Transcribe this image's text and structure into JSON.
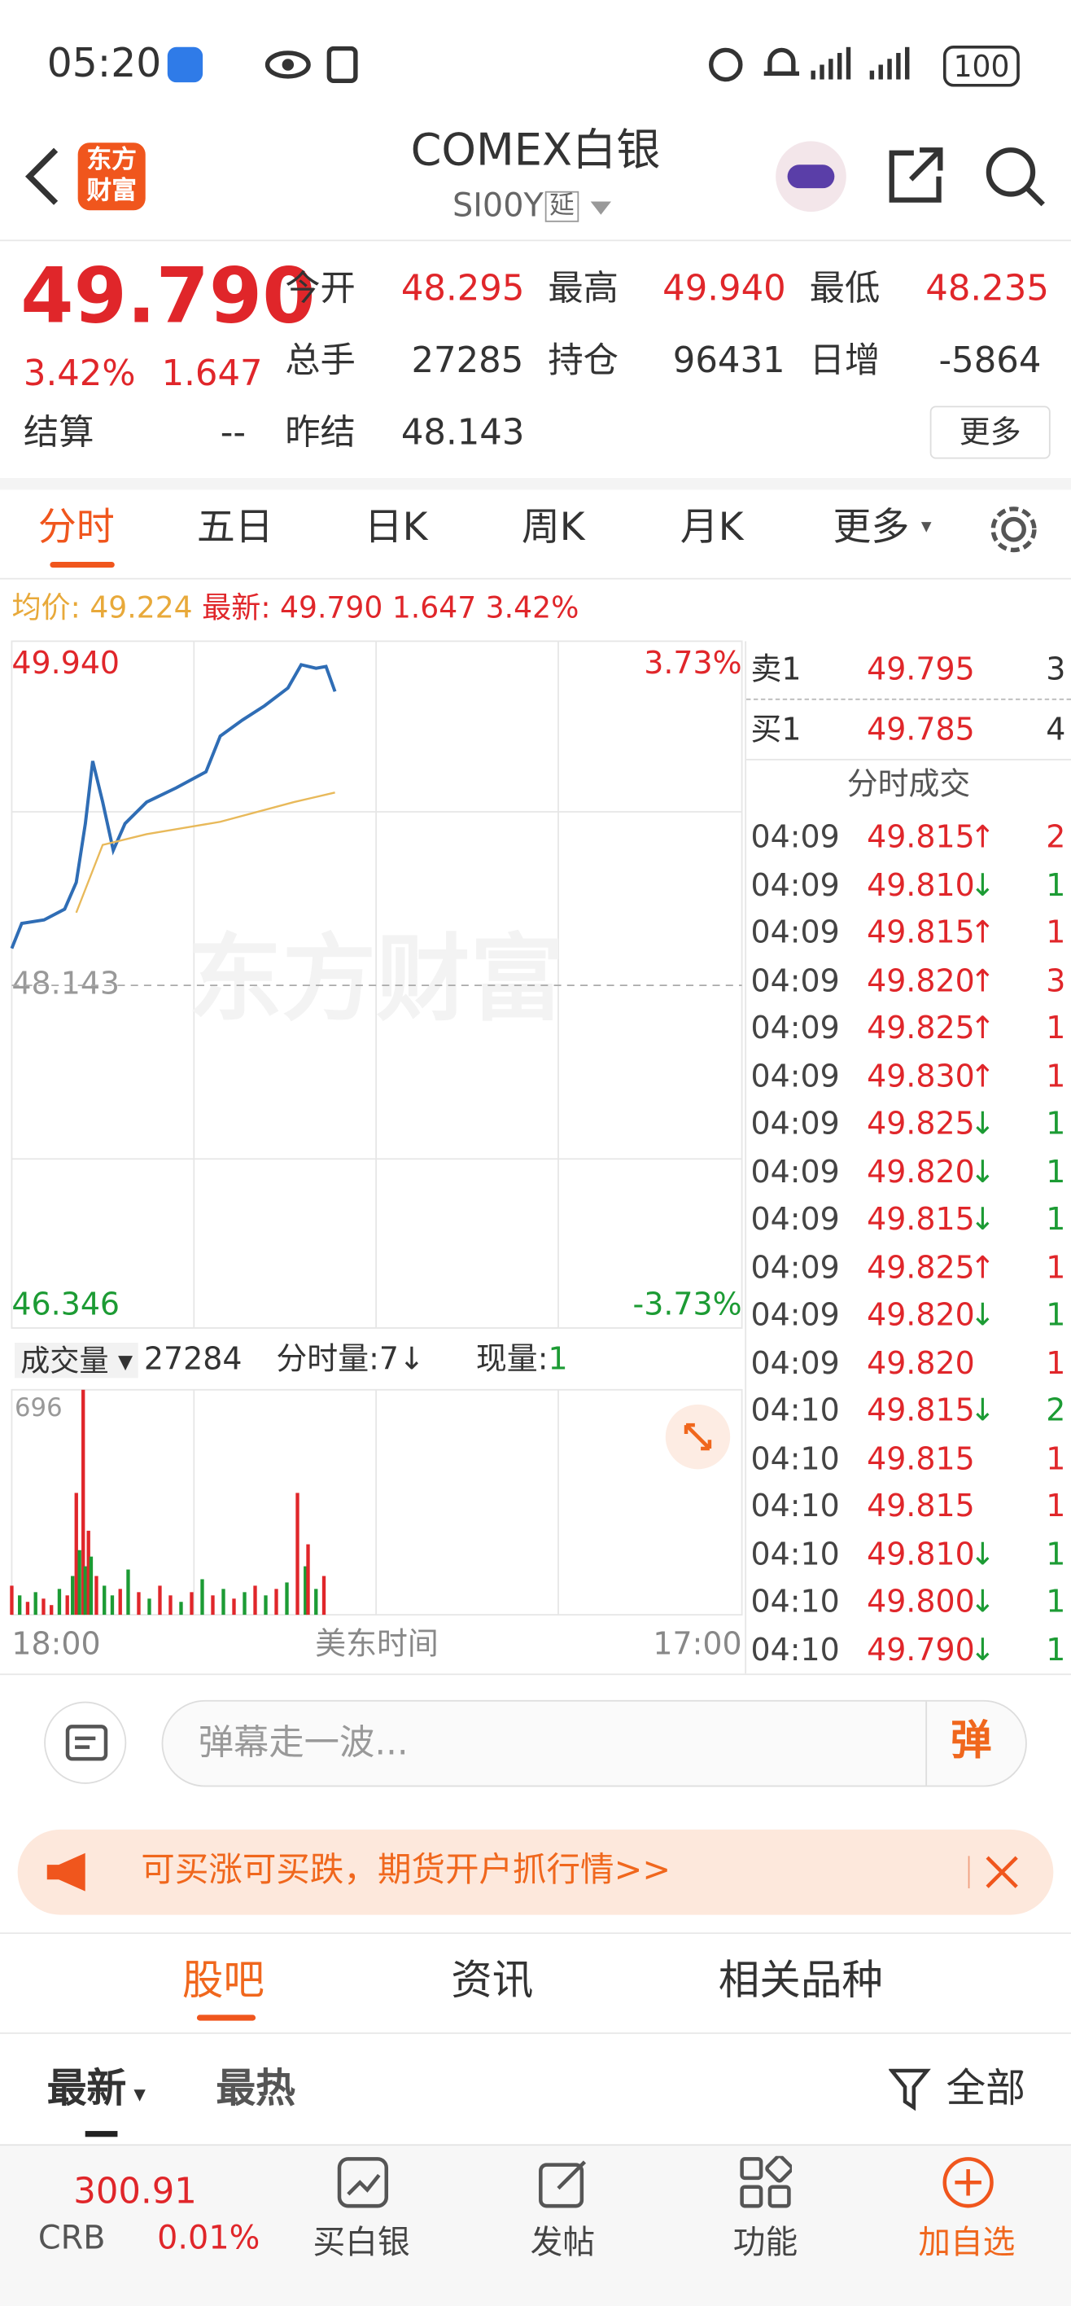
{
  "status_bar": {
    "time": "05:20",
    "battery": "100"
  },
  "header": {
    "logo": [
      "东方",
      "财富"
    ],
    "title": "COMEX白银",
    "code": "SI00Y",
    "tag": "延"
  },
  "quote": {
    "price": "49.790",
    "change_pct": "3.42%",
    "change": "1.647",
    "fields": [
      {
        "label": "今开",
        "value": "48.295"
      },
      {
        "label": "最高",
        "value": "49.940"
      },
      {
        "label": "最低",
        "value": "48.235"
      },
      {
        "label": "总手",
        "value": "27285"
      },
      {
        "label": "持仓",
        "value": "96431"
      },
      {
        "label": "日增",
        "value": "-5864"
      },
      {
        "label": "结算",
        "value": "--"
      },
      {
        "label": "昨结",
        "value": "48.143"
      }
    ],
    "more": "更多"
  },
  "tabs": {
    "items": [
      "分时",
      "五日",
      "日K",
      "周K",
      "月K",
      "更多"
    ],
    "active": 0
  },
  "summary": {
    "avg_label": "均价:",
    "avg": "49.224",
    "last_label": "最新:",
    "last": "49.790",
    "change": "1.647",
    "change_pct": "3.42%"
  },
  "watermark": "东方财富",
  "volume_bar": {
    "label": "成交量",
    "total": "27284",
    "minute": "分时量:7↓",
    "current_label": "现量:",
    "current": "1"
  },
  "order_book": [
    {
      "side": "卖1",
      "price": "49.795",
      "qty": "3"
    },
    {
      "side": "买1",
      "price": "49.785",
      "qty": "4"
    }
  ],
  "trades": {
    "title": "分时成交",
    "rows": [
      {
        "time": "04:09",
        "price": "49.815",
        "dir": "↑",
        "qty": "2"
      },
      {
        "time": "04:09",
        "price": "49.810",
        "dir": "↓",
        "qty": "1"
      },
      {
        "time": "04:09",
        "price": "49.815",
        "dir": "↑",
        "qty": "1"
      },
      {
        "time": "04:09",
        "price": "49.820",
        "dir": "↑",
        "qty": "3"
      },
      {
        "time": "04:09",
        "price": "49.825",
        "dir": "↑",
        "qty": "1"
      },
      {
        "time": "04:09",
        "price": "49.830",
        "dir": "↑",
        "qty": "1"
      },
      {
        "time": "04:09",
        "price": "49.825",
        "dir": "↓",
        "qty": "1"
      },
      {
        "time": "04:09",
        "price": "49.820",
        "dir": "↓",
        "qty": "1"
      },
      {
        "time": "04:09",
        "price": "49.815",
        "dir": "↓",
        "qty": "1"
      },
      {
        "time": "04:09",
        "price": "49.825",
        "dir": "↑",
        "qty": "1"
      },
      {
        "time": "04:09",
        "price": "49.820",
        "dir": "↓",
        "qty": "1"
      },
      {
        "time": "04:09",
        "price": "49.820",
        "qty": "1"
      },
      {
        "time": "04:10",
        "price": "49.815",
        "dir": "↓",
        "qty": "2"
      },
      {
        "time": "04:10",
        "price": "49.815",
        "qty": "1"
      },
      {
        "time": "04:10",
        "price": "49.815",
        "qty": "1"
      },
      {
        "time": "04:10",
        "price": "49.810",
        "dir": "↓",
        "qty": "1"
      },
      {
        "time": "04:10",
        "price": "49.800",
        "dir": "↓",
        "qty": "1"
      },
      {
        "time": "04:10",
        "price": "49.790",
        "dir": "↓",
        "qty": "1"
      }
    ]
  },
  "chart_data": [
    {
      "type": "line",
      "x_label": "美东时间",
      "xlim": [
        0,
        1380
      ],
      "xticks": [
        {
          "value": 0,
          "label": "18:00"
        },
        {
          "value": 1380,
          "label": "17:00"
        }
      ],
      "ylim": [
        46.346,
        49.94
      ],
      "yticks": [
        46.346,
        48.143,
        {
          "value": 49.94,
          "label": "49.940"
        }
      ],
      "y2lim": [
        -3.73,
        3.73
      ],
      "y2ticks": [
        {
          "value": -3.73,
          "label": "-3.73%"
        },
        {
          "value": 3.73,
          "label": "3.73%"
        }
      ],
      "series": [
        {
          "color": "#2f6db5",
          "x": [
            0,
            19,
            61,
            100,
            122,
            139,
            153,
            172,
            192,
            214,
            255,
            311,
            367,
            394,
            436,
            478,
            522,
            547,
            575,
            594,
            611
          ],
          "values": [
            48.35,
            48.49,
            48.51,
            48.57,
            48.72,
            49.05,
            49.4,
            49.17,
            48.9,
            49.05,
            49.17,
            49.25,
            49.34,
            49.54,
            49.63,
            49.71,
            49.81,
            49.94,
            49.92,
            49.93,
            49.79
          ]
        },
        {
          "color": "#e8b95a",
          "x": [
            122,
            172,
            255,
            394,
            533,
            611
          ],
          "values": [
            48.55,
            48.93,
            48.99,
            49.06,
            49.17,
            49.224
          ]
        }
      ]
    },
    {
      "type": "bar",
      "xlim": [
        0,
        1380
      ],
      "ylim": [
        0,
        696
      ],
      "yticks": [
        696
      ],
      "x": [
        0,
        15,
        30,
        45,
        60,
        75,
        90,
        105,
        115,
        122,
        128,
        135,
        139,
        145,
        150,
        160,
        175,
        190,
        205,
        220,
        240,
        260,
        280,
        300,
        320,
        340,
        360,
        380,
        400,
        420,
        440,
        460,
        480,
        500,
        520,
        540,
        555,
        560,
        575,
        590
      ],
      "values": [
        90,
        60,
        40,
        70,
        50,
        30,
        80,
        60,
        120,
        377,
        200,
        696,
        150,
        260,
        180,
        120,
        90,
        60,
        80,
        140,
        70,
        50,
        90,
        60,
        40,
        70,
        110,
        60,
        80,
        50,
        70,
        90,
        60,
        80,
        100,
        377,
        150,
        218,
        80,
        120
      ],
      "colors": [
        "#e0262a",
        "#1c9b34",
        "#e0262a",
        "#1c9b34",
        "#e0262a",
        "#e0262a",
        "#1c9b34",
        "#e0262a",
        "#1c9b34",
        "#e0262a",
        "#1c9b34",
        "#e0262a",
        "#1c9b34",
        "#e0262a",
        "#1c9b34",
        "#e0262a",
        "#1c9b34",
        "#1c9b34",
        "#e0262a",
        "#1c9b34",
        "#e0262a",
        "#1c9b34",
        "#e0262a",
        "#e0262a",
        "#1c9b34",
        "#e0262a",
        "#1c9b34",
        "#e0262a",
        "#1c9b34",
        "#e0262a",
        "#1c9b34",
        "#e0262a",
        "#1c9b34",
        "#e0262a",
        "#1c9b34",
        "#e0262a",
        "#1c9b34",
        "#e0262a",
        "#1c9b34",
        "#e0262a"
      ]
    }
  ],
  "comment": {
    "placeholder": "弹幕走一波...",
    "button": "弹"
  },
  "banner": {
    "text": "可买涨可买跌，期货开户抓行情>>"
  },
  "section_tabs": [
    "股吧",
    "资讯",
    "相关品种"
  ],
  "filters": {
    "latest": "最新",
    "hot": "最热",
    "all": "全部"
  },
  "bottom_nav": {
    "index": {
      "name": "CRB",
      "value": "300.91",
      "change": "0.01%"
    },
    "items": [
      "买白银",
      "发帖",
      "功能",
      "加自选"
    ]
  }
}
